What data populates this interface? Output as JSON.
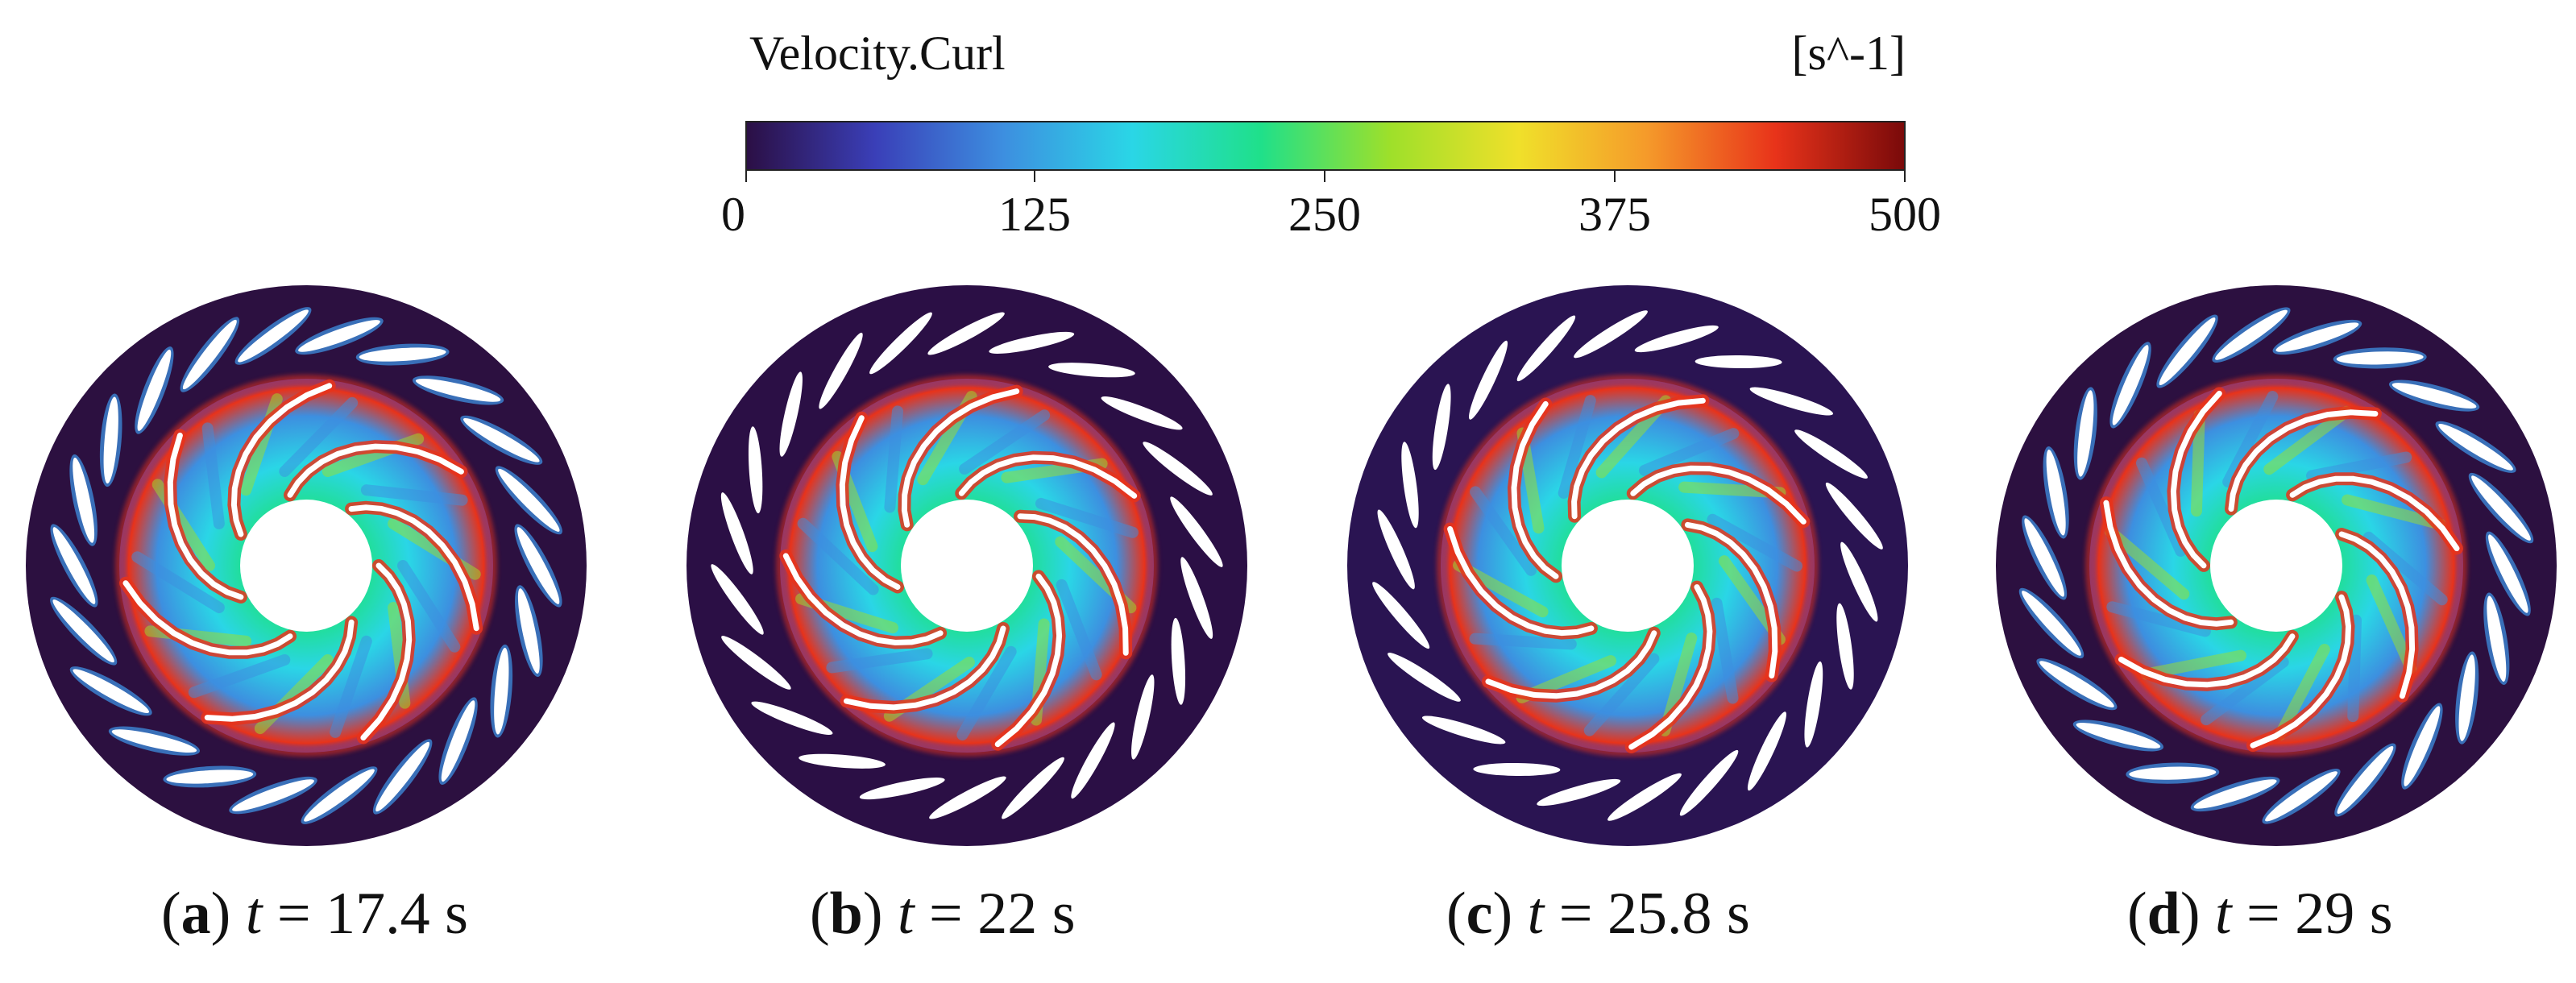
{
  "colorbar": {
    "title": "Velocity.Curl",
    "unit": "[s^-1]",
    "ticks": [
      "0",
      "125",
      "250",
      "375",
      "500"
    ],
    "range": [
      0,
      500
    ],
    "colormap": [
      "#2b0f45",
      "#3a3fb8",
      "#3d8fe0",
      "#2ad6e6",
      "#1fe08a",
      "#9ee02a",
      "#f0e02a",
      "#f59a2a",
      "#e8331a",
      "#7a0a0a"
    ]
  },
  "panels": [
    {
      "letter": "a",
      "t_label": "t",
      "eq": "= 17.4 s"
    },
    {
      "letter": "b",
      "t_label": "t",
      "eq": "= 22 s"
    },
    {
      "letter": "c",
      "t_label": "t",
      "eq": "= 25.8 s"
    },
    {
      "letter": "d",
      "t_label": "t",
      "eq": "= 29 s"
    }
  ]
}
